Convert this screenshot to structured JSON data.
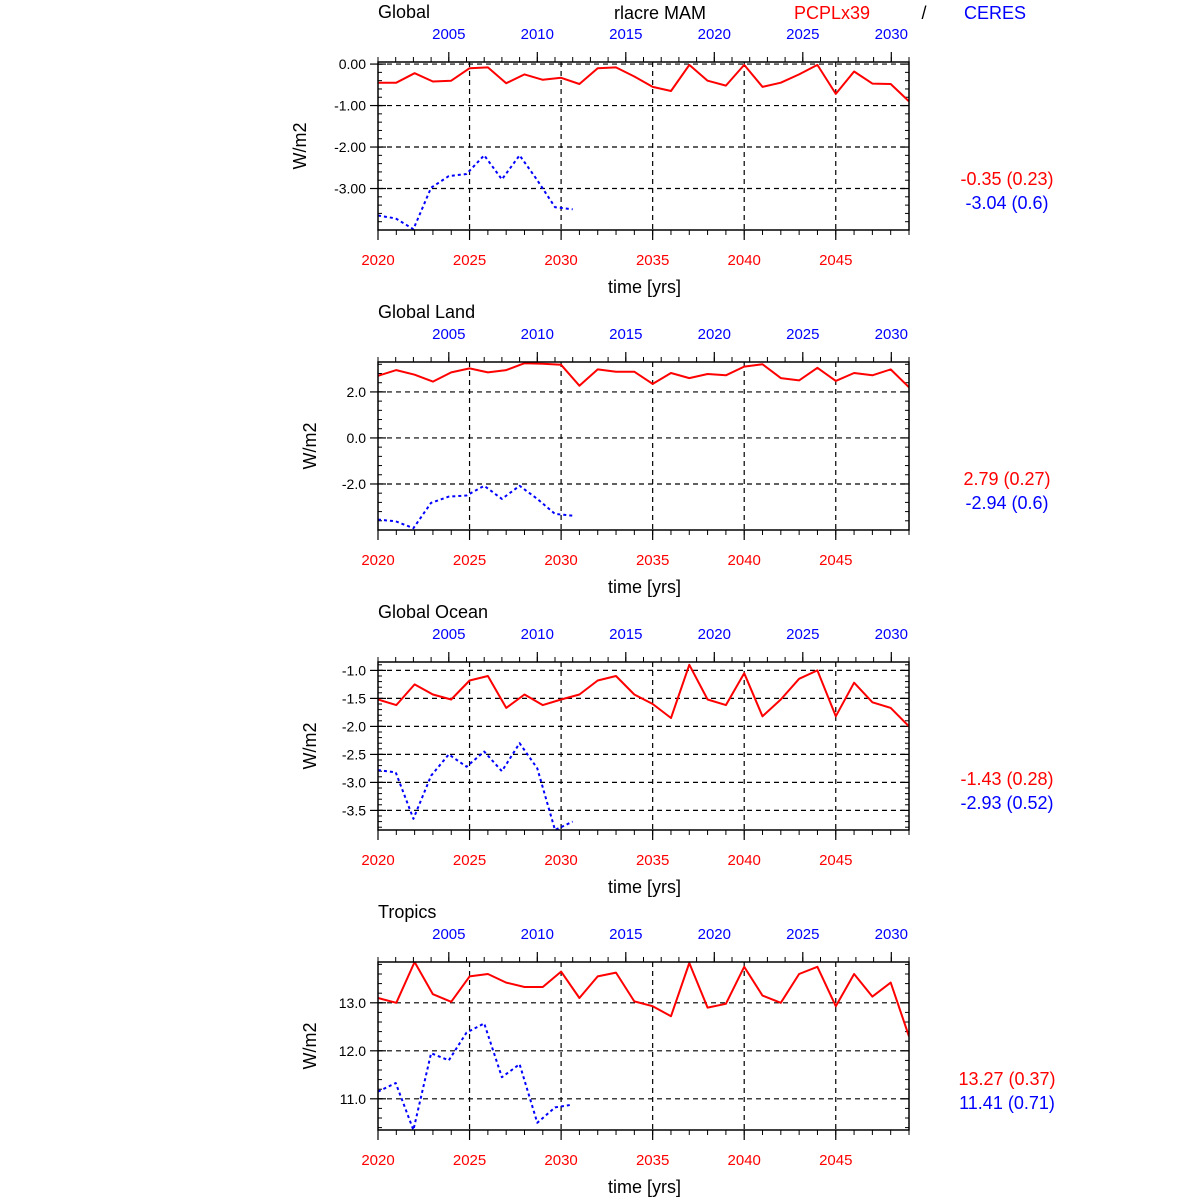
{
  "header": {
    "variable": "rlacre MAM",
    "model_label": "PCPLx39",
    "separator": "/",
    "obs_label": "CERES",
    "model_color": "#ff0000",
    "obs_color": "#0000ff"
  },
  "chart_data": [
    {
      "type": "line",
      "title": "Global",
      "xlabel": "time [yrs]",
      "ylabel": "W/m2",
      "grid": true,
      "ylim": [
        -4.0,
        0.05
      ],
      "yticks": [
        0.0,
        -1.0,
        -2.0,
        -3.0
      ],
      "ytick_labels": [
        "0.00",
        "-1.00",
        "-2.00",
        "-3.00"
      ],
      "x_bottom": {
        "range": [
          2020,
          2049
        ],
        "ticks": [
          2020,
          2025,
          2030,
          2035,
          2040,
          2045
        ],
        "tick_labels": [
          "2020",
          "2025",
          "2030",
          "2035",
          "2040",
          "2045"
        ]
      },
      "x_top": {
        "range": [
          2001,
          2031
        ],
        "ticks": [
          2005,
          2010,
          2015,
          2020,
          2025,
          2030
        ],
        "tick_labels": [
          "2005",
          "2010",
          "2015",
          "2020",
          "2025",
          "2030"
        ]
      },
      "stats": {
        "model": "-0.35 (0.23)",
        "obs": "-3.04 (0.6)"
      },
      "series": [
        {
          "name": "PCPLx39",
          "axis": "bottom",
          "style": "solid",
          "x": [
            2020,
            2021,
            2022,
            2023,
            2024,
            2025,
            2026,
            2027,
            2028,
            2029,
            2030,
            2031,
            2032,
            2033,
            2034,
            2035,
            2036,
            2037,
            2038,
            2039,
            2040,
            2041,
            2042,
            2043,
            2044,
            2045,
            2046,
            2047,
            2048,
            2049
          ],
          "values": [
            -0.45,
            -0.45,
            -0.22,
            -0.42,
            -0.4,
            -0.1,
            -0.08,
            -0.46,
            -0.25,
            -0.38,
            -0.33,
            -0.48,
            -0.1,
            -0.08,
            -0.3,
            -0.55,
            -0.65,
            -0.02,
            -0.4,
            -0.52,
            -0.02,
            -0.55,
            -0.45,
            -0.25,
            -0.02,
            -0.72,
            -0.18,
            -0.47,
            -0.48,
            -0.9
          ]
        },
        {
          "name": "CERES",
          "axis": "top",
          "style": "dashed",
          "x": [
            2001,
            2002,
            2003,
            2004,
            2005,
            2006,
            2007,
            2008,
            2009,
            2010,
            2011,
            2012
          ],
          "values": [
            -3.65,
            -3.72,
            -3.98,
            -2.98,
            -2.7,
            -2.65,
            -2.2,
            -2.78,
            -2.2,
            -2.8,
            -3.45,
            -3.5
          ]
        }
      ]
    },
    {
      "type": "line",
      "title": "Global Land",
      "xlabel": "time [yrs]",
      "ylabel": "W/m2",
      "grid": true,
      "ylim": [
        -4.0,
        3.3
      ],
      "yticks": [
        2.0,
        0.0,
        -2.0
      ],
      "ytick_labels": [
        "2.0",
        "0.0",
        "-2.0"
      ],
      "x_bottom": {
        "range": [
          2020,
          2049
        ],
        "ticks": [
          2020,
          2025,
          2030,
          2035,
          2040,
          2045
        ],
        "tick_labels": [
          "2020",
          "2025",
          "2030",
          "2035",
          "2040",
          "2045"
        ]
      },
      "x_top": {
        "range": [
          2001,
          2031
        ],
        "ticks": [
          2005,
          2010,
          2015,
          2020,
          2025,
          2030
        ],
        "tick_labels": [
          "2005",
          "2010",
          "2015",
          "2020",
          "2025",
          "2030"
        ]
      },
      "stats": {
        "model": "2.79 (0.27)",
        "obs": "-2.94 (0.6)"
      },
      "series": [
        {
          "name": "PCPLx39",
          "axis": "bottom",
          "style": "solid",
          "x": [
            2020,
            2021,
            2022,
            2023,
            2024,
            2025,
            2026,
            2027,
            2028,
            2029,
            2030,
            2031,
            2032,
            2033,
            2034,
            2035,
            2036,
            2037,
            2038,
            2039,
            2040,
            2041,
            2042,
            2043,
            2044,
            2045,
            2046,
            2047,
            2048,
            2049
          ],
          "values": [
            2.7,
            2.95,
            2.75,
            2.45,
            2.85,
            3.02,
            2.85,
            2.95,
            3.25,
            3.22,
            3.18,
            2.27,
            2.98,
            2.88,
            2.88,
            2.35,
            2.82,
            2.6,
            2.78,
            2.72,
            3.1,
            3.2,
            2.6,
            2.5,
            3.05,
            2.48,
            2.82,
            2.72,
            2.98,
            2.2
          ]
        },
        {
          "name": "CERES",
          "axis": "top",
          "style": "dashed",
          "x": [
            2001,
            2002,
            2003,
            2004,
            2005,
            2006,
            2007,
            2008,
            2009,
            2010,
            2011,
            2012
          ],
          "values": [
            -3.55,
            -3.62,
            -3.92,
            -2.82,
            -2.55,
            -2.5,
            -2.08,
            -2.65,
            -2.08,
            -2.65,
            -3.3,
            -3.38
          ]
        }
      ]
    },
    {
      "type": "line",
      "title": "Global Ocean",
      "xlabel": "time [yrs]",
      "ylabel": "W/m2",
      "grid": true,
      "ylim": [
        -3.85,
        -0.85
      ],
      "yticks": [
        -1.0,
        -1.5,
        -2.0,
        -2.5,
        -3.0,
        -3.5
      ],
      "ytick_labels": [
        "-1.0",
        "-1.5",
        "-2.0",
        "-2.5",
        "-3.0",
        "-3.5"
      ],
      "x_bottom": {
        "range": [
          2020,
          2049
        ],
        "ticks": [
          2020,
          2025,
          2030,
          2035,
          2040,
          2045
        ],
        "tick_labels": [
          "2020",
          "2025",
          "2030",
          "2035",
          "2040",
          "2045"
        ]
      },
      "x_top": {
        "range": [
          2001,
          2031
        ],
        "ticks": [
          2005,
          2010,
          2015,
          2020,
          2025,
          2030
        ],
        "tick_labels": [
          "2005",
          "2010",
          "2015",
          "2020",
          "2025",
          "2030"
        ]
      },
      "stats": {
        "model": "-1.43 (0.28)",
        "obs": "-2.93 (0.52)"
      },
      "series": [
        {
          "name": "PCPLx39",
          "axis": "bottom",
          "style": "solid",
          "x": [
            2020,
            2021,
            2022,
            2023,
            2024,
            2025,
            2026,
            2027,
            2028,
            2029,
            2030,
            2031,
            2032,
            2033,
            2034,
            2035,
            2036,
            2037,
            2038,
            2039,
            2040,
            2041,
            2042,
            2043,
            2044,
            2045,
            2046,
            2047,
            2048,
            2049
          ],
          "values": [
            -1.52,
            -1.62,
            -1.25,
            -1.43,
            -1.52,
            -1.18,
            -1.1,
            -1.67,
            -1.43,
            -1.62,
            -1.52,
            -1.43,
            -1.18,
            -1.1,
            -1.43,
            -1.6,
            -1.85,
            -0.9,
            -1.52,
            -1.62,
            -1.05,
            -1.82,
            -1.52,
            -1.15,
            -1.0,
            -1.82,
            -1.22,
            -1.57,
            -1.67,
            -2.0
          ]
        },
        {
          "name": "CERES",
          "axis": "top",
          "style": "dashed",
          "x": [
            2001,
            2002,
            2003,
            2004,
            2005,
            2006,
            2007,
            2008,
            2009,
            2010,
            2011,
            2012
          ],
          "values": [
            -2.78,
            -2.82,
            -3.65,
            -2.88,
            -2.5,
            -2.72,
            -2.45,
            -2.8,
            -2.3,
            -2.75,
            -3.85,
            -3.7
          ]
        }
      ]
    },
    {
      "type": "line",
      "title": "Tropics",
      "xlabel": "time [yrs]",
      "ylabel": "W/m2",
      "grid": true,
      "ylim": [
        10.35,
        13.85
      ],
      "yticks": [
        13.0,
        12.0,
        11.0
      ],
      "ytick_labels": [
        "13.0",
        "12.0",
        "11.0"
      ],
      "x_bottom": {
        "range": [
          2020,
          2049
        ],
        "ticks": [
          2020,
          2025,
          2030,
          2035,
          2040,
          2045
        ],
        "tick_labels": [
          "2020",
          "2025",
          "2030",
          "2035",
          "2040",
          "2045"
        ]
      },
      "x_top": {
        "range": [
          2001,
          2031
        ],
        "ticks": [
          2005,
          2010,
          2015,
          2020,
          2025,
          2030
        ],
        "tick_labels": [
          "2005",
          "2010",
          "2015",
          "2020",
          "2025",
          "2030"
        ]
      },
      "stats": {
        "model": "13.27 (0.37)",
        "obs": "11.41 (0.71)"
      },
      "series": [
        {
          "name": "PCPLx39",
          "axis": "bottom",
          "style": "solid",
          "x": [
            2020,
            2021,
            2022,
            2023,
            2024,
            2025,
            2026,
            2027,
            2028,
            2029,
            2030,
            2031,
            2032,
            2033,
            2034,
            2035,
            2036,
            2037,
            2038,
            2039,
            2040,
            2041,
            2042,
            2043,
            2044,
            2045,
            2046,
            2047,
            2048,
            2049
          ],
          "values": [
            13.1,
            13.0,
            13.85,
            13.18,
            13.02,
            13.55,
            13.6,
            13.42,
            13.33,
            13.33,
            13.65,
            13.1,
            13.55,
            13.63,
            13.03,
            12.93,
            12.72,
            13.83,
            12.9,
            12.98,
            13.75,
            13.15,
            13.0,
            13.6,
            13.75,
            12.93,
            13.6,
            13.13,
            13.42,
            12.3
          ]
        },
        {
          "name": "CERES",
          "axis": "top",
          "style": "dashed",
          "x": [
            2001,
            2002,
            2003,
            2004,
            2005,
            2006,
            2007,
            2008,
            2009,
            2010,
            2011,
            2012
          ],
          "values": [
            11.15,
            11.33,
            10.35,
            11.95,
            11.8,
            12.38,
            12.57,
            11.45,
            11.72,
            10.5,
            10.82,
            10.88
          ]
        }
      ]
    }
  ]
}
